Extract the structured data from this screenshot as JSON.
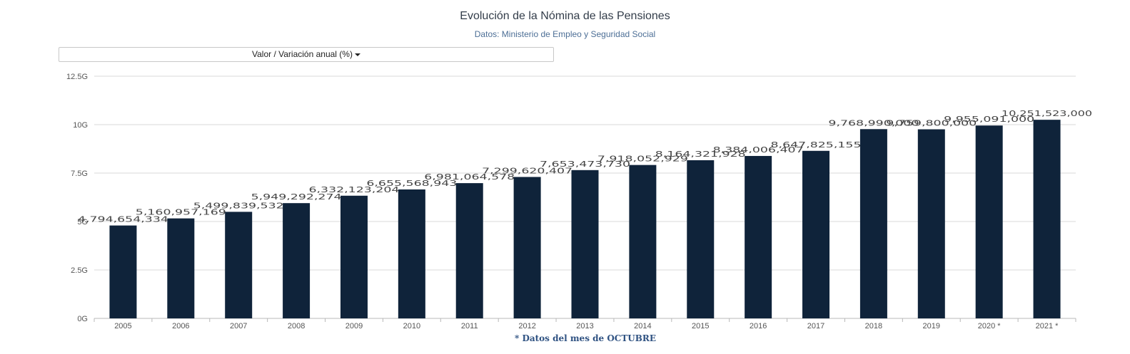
{
  "chart_data": {
    "type": "bar",
    "title": "Evolución de la Nómina de las Pensiones",
    "subtitle": "Datos: Ministerio de Empleo y Seguridad Social",
    "selector_label": "Valor / Variación anual (%)",
    "footnote": "* Datos del mes de OCTUBRE",
    "categories": [
      "2005",
      "2006",
      "2007",
      "2008",
      "2009",
      "2010",
      "2011",
      "2012",
      "2013",
      "2014",
      "2015",
      "2016",
      "2017",
      "2018",
      "2019",
      "2020 *",
      "2021 *"
    ],
    "values": [
      4794654334,
      5160957169,
      5499839532,
      5949292274,
      6332123204,
      6655568943,
      6981064578,
      7299620407,
      7653473730,
      7918052929,
      8164321928,
      8384006407,
      8647825155,
      9768990000,
      9759800000,
      9955091000,
      10251523000
    ],
    "value_labels": [
      "4,794,654,334",
      "5,160,957,169",
      "5,499,839,532",
      "5,949,292,274",
      "6,332,123,204",
      "6,655,568,943",
      "6,981,064,578",
      "7,299,620,407",
      "7,653,473,730",
      "7,918,052,929",
      "8,164,321,928",
      "8,384,006,407",
      "8,647,825,155",
      "9,768,990,000",
      "9,759,800,000",
      "9,955,091,000",
      "10,251,523,000"
    ],
    "y_ticks": [
      "0G",
      "2.5G",
      "5G",
      "7.5G",
      "10G",
      "12.5G"
    ],
    "ylim": [
      0,
      12500000000
    ],
    "grid": true,
    "bar_color": "#0f233a",
    "grid_color": "#d8d8d8"
  }
}
